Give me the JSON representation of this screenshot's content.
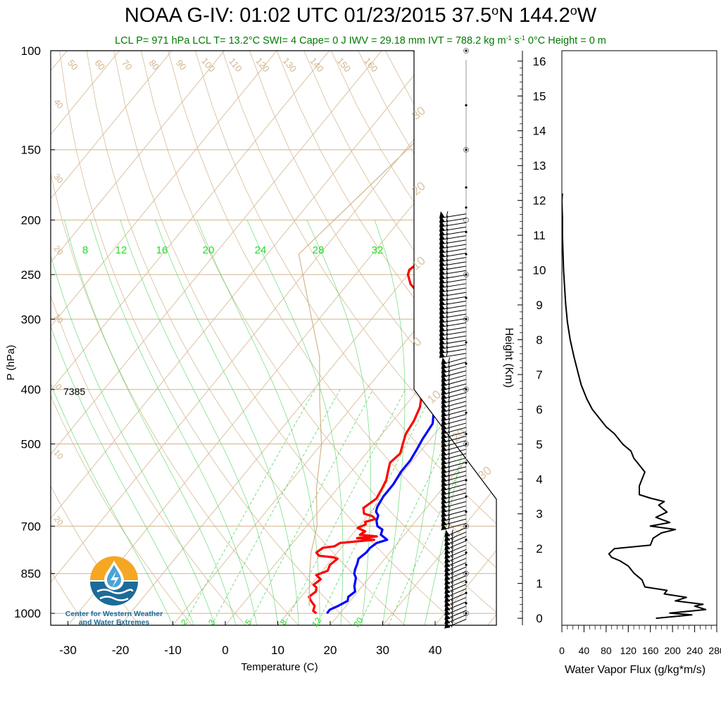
{
  "header": {
    "title_main": "NOAA G-IV: 01:02 UTC 01/23/2015  37.5",
    "title_deg1": "o",
    "title_mid": "N 144.2",
    "title_deg2": "o",
    "title_end": "W",
    "sub_a": "LCL P= 971 hPa  LCL T= 13.2°C  SWI= 4  Cape= 0 J  IWV = 29.18 mm  IVT = 788.2 kg m",
    "sub_exp1": "-1",
    "sub_b": " s",
    "sub_exp2": "-1",
    "sub_c": "  0°C Height = 0 m"
  },
  "logo": {
    "line1": "Center for Western Weather",
    "line2": "and Water Extremes",
    "colors": {
      "sun": "#f5a623",
      "water": "#1d6b99",
      "drop": "#4aa3d6"
    }
  },
  "colors": {
    "temperature": "#ff0000",
    "dewpoint": "#0000ff",
    "dry_adiabat": "#d2b48c",
    "moist_adiabat": "#2ecc40",
    "mixing_ratio": "#2ecc40",
    "isobar": "#d2b48c",
    "flux": "#000000"
  },
  "chart_data": [
    {
      "type": "line",
      "name": "skew-t",
      "xlabel": "Temperature (C)",
      "ylabel": "P (hPa)",
      "x_ticks": [
        "-30",
        "-20",
        "-10",
        "0",
        "10",
        "20",
        "30",
        "40"
      ],
      "p_ticks": [
        "100",
        "150",
        "200",
        "250",
        "300",
        "400",
        "500",
        "700",
        "850",
        "1000"
      ],
      "p_values": [
        100,
        150,
        200,
        250,
        300,
        400,
        500,
        700,
        850,
        1000
      ],
      "annotation": "7385",
      "isotherm_labels": [
        "50",
        "60",
        "70",
        "80",
        "90",
        "100",
        "110",
        "120",
        "130",
        "140",
        "150",
        "160"
      ],
      "left_isotherm_labels": [
        "40",
        "30",
        "20",
        "10",
        "0",
        "10",
        "20"
      ],
      "right_isotherm_labels": [
        "30",
        "20",
        "10",
        "0",
        "10",
        "20",
        "30"
      ],
      "moist_labels": [
        "8",
        "12",
        "16",
        "20",
        "24",
        "28",
        "32"
      ],
      "mixing_labels": [
        "2",
        "3",
        "5",
        "8",
        "12",
        "20"
      ],
      "series": [
        {
          "name": "temperature",
          "points": [
            [
              15.5,
              1000
            ],
            [
              14.5,
              990
            ],
            [
              14.0,
              970
            ],
            [
              12.5,
              950
            ],
            [
              11.5,
              935
            ],
            [
              12.0,
              915
            ],
            [
              11.5,
              900
            ],
            [
              10.5,
              890
            ],
            [
              11.0,
              870
            ],
            [
              9.5,
              855
            ],
            [
              11.0,
              840
            ],
            [
              10.5,
              820
            ],
            [
              11.0,
              800
            ],
            [
              10.0,
              795
            ],
            [
              7.0,
              790
            ],
            [
              6.0,
              780
            ],
            [
              6.5,
              765
            ],
            [
              8.5,
              760
            ],
            [
              9.0,
              750
            ],
            [
              12.0,
              745
            ],
            [
              15.0,
              740
            ],
            [
              11.5,
              735
            ],
            [
              15.0,
              730
            ],
            [
              11.5,
              725
            ],
            [
              12.0,
              715
            ],
            [
              10.0,
              705
            ],
            [
              11.0,
              695
            ],
            [
              10.5,
              688
            ],
            [
              12.0,
              680
            ],
            [
              11.0,
              672
            ],
            [
              9.0,
              665
            ],
            [
              8.0,
              650
            ],
            [
              9.0,
              625
            ],
            [
              8.5,
              600
            ],
            [
              8.0,
              580
            ],
            [
              7.0,
              560
            ],
            [
              6.0,
              540
            ],
            [
              6.5,
              520
            ],
            [
              5.5,
              500
            ],
            [
              4.5,
              480
            ],
            [
              4.0,
              455
            ],
            [
              3.0,
              430
            ],
            [
              1.5,
              410
            ],
            [
              0.0,
              400
            ],
            [
              -2.5,
              370
            ],
            [
              -5.0,
              340
            ],
            [
              -7.5,
              320
            ],
            [
              -10.0,
              300
            ],
            [
              -12.0,
              290
            ],
            [
              -13.0,
              280
            ],
            [
              -15.0,
              270
            ],
            [
              -18.0,
              260
            ],
            [
              -20.0,
              250
            ],
            [
              -20.5,
              245
            ],
            [
              -20.0,
              240
            ],
            [
              -19.0,
              235
            ],
            [
              -17.0,
              230
            ],
            [
              -15.5,
              225
            ],
            [
              -17.0,
              220
            ],
            [
              -19.0,
              215
            ],
            [
              -20.5,
              210
            ],
            [
              -22.0,
              200
            ],
            [
              -23.5,
              190
            ]
          ]
        },
        {
          "name": "dewpoint",
          "points": [
            [
              17.5,
              1000
            ],
            [
              17.5,
              985
            ],
            [
              18.5,
              970
            ],
            [
              19.5,
              950
            ],
            [
              19.0,
              935
            ],
            [
              19.5,
              915
            ],
            [
              18.5,
              895
            ],
            [
              18.0,
              880
            ],
            [
              17.5,
              865
            ],
            [
              16.5,
              850
            ],
            [
              16.0,
              835
            ],
            [
              15.5,
              815
            ],
            [
              15.0,
              800
            ],
            [
              15.5,
              780
            ],
            [
              15.5,
              765
            ],
            [
              16.0,
              750
            ],
            [
              17.5,
              740
            ],
            [
              15.5,
              725
            ],
            [
              15.0,
              710
            ],
            [
              13.5,
              700
            ],
            [
              12.5,
              685
            ],
            [
              12.0,
              670
            ],
            [
              11.0,
              660
            ],
            [
              10.5,
              648
            ],
            [
              10.0,
              620
            ],
            [
              10.0,
              590
            ],
            [
              9.5,
              560
            ],
            [
              9.5,
              535
            ],
            [
              9.0,
              510
            ],
            [
              8.5,
              490
            ],
            [
              8.0,
              460
            ],
            [
              6.5,
              440
            ],
            [
              5.5,
              415
            ],
            [
              4.0,
              395
            ],
            [
              2.5,
              370
            ],
            [
              0.5,
              340
            ],
            [
              -1.5,
              320
            ],
            [
              -3.0,
              305
            ],
            [
              -5.0,
              290
            ],
            [
              -7.5,
              275
            ],
            [
              -9.5,
              262
            ],
            [
              -11.0,
              250
            ],
            [
              -10.5,
              240
            ],
            [
              -8.0,
              232
            ],
            [
              -5.5,
              225
            ],
            [
              -3.5,
              220
            ],
            [
              -3.0,
              215
            ],
            [
              -3.5,
              208
            ],
            [
              -5.0,
              198
            ],
            [
              -5.5,
              190
            ]
          ]
        },
        {
          "name": "parcel",
          "points": [
            [
              13.0,
              971
            ],
            [
              8.0,
              850
            ],
            [
              5.0,
              780
            ],
            [
              2.0,
              700
            ],
            [
              -4.0,
              600
            ],
            [
              -10.0,
              500
            ],
            [
              -17.0,
              420
            ],
            [
              -24.0,
              350
            ],
            [
              -33.0,
              290
            ],
            [
              -44.0,
              230
            ],
            [
              -39.0,
              140
            ],
            [
              -28.0,
              100
            ]
          ]
        }
      ]
    },
    {
      "type": "line",
      "name": "water-vapor-flux",
      "xlabel": "Water Vapor Flux (g/kg*m/s)",
      "ylabel": "Height (Km)",
      "x_ticks": [
        "0",
        "40",
        "80",
        "120",
        "160",
        "200",
        "240",
        "280"
      ],
      "y_ticks": [
        "0",
        "1",
        "2",
        "3",
        "4",
        "5",
        "6",
        "7",
        "8",
        "9",
        "10",
        "11",
        "12",
        "13",
        "14",
        "15",
        "16"
      ],
      "xlim": [
        0,
        280
      ],
      "ylim": [
        -0.2,
        16.3
      ],
      "series": [
        {
          "name": "flux",
          "points": [
            [
              170,
              0.0
            ],
            [
              235,
              0.1
            ],
            [
              195,
              0.15
            ],
            [
              260,
              0.25
            ],
            [
              240,
              0.35
            ],
            [
              255,
              0.4
            ],
            [
              205,
              0.5
            ],
            [
              225,
              0.6
            ],
            [
              185,
              0.7
            ],
            [
              190,
              0.8
            ],
            [
              150,
              0.9
            ],
            [
              145,
              1.1
            ],
            [
              130,
              1.3
            ],
            [
              120,
              1.5
            ],
            [
              105,
              1.65
            ],
            [
              90,
              1.75
            ],
            [
              85,
              1.85
            ],
            [
              95,
              2.0
            ],
            [
              160,
              2.1
            ],
            [
              165,
              2.3
            ],
            [
              180,
              2.45
            ],
            [
              205,
              2.55
            ],
            [
              160,
              2.65
            ],
            [
              195,
              2.75
            ],
            [
              170,
              2.9
            ],
            [
              190,
              3.05
            ],
            [
              175,
              3.25
            ],
            [
              185,
              3.35
            ],
            [
              160,
              3.45
            ],
            [
              140,
              3.55
            ],
            [
              140,
              3.8
            ],
            [
              145,
              4.0
            ],
            [
              150,
              4.2
            ],
            [
              140,
              4.4
            ],
            [
              130,
              4.6
            ],
            [
              125,
              4.8
            ],
            [
              110,
              5.0
            ],
            [
              95,
              5.3
            ],
            [
              80,
              5.5
            ],
            [
              65,
              5.8
            ],
            [
              55,
              6.0
            ],
            [
              45,
              6.3
            ],
            [
              35,
              6.7
            ],
            [
              30,
              7.0
            ],
            [
              22,
              7.5
            ],
            [
              15,
              8.0
            ],
            [
              10,
              8.5
            ],
            [
              7,
              9.0
            ],
            [
              5,
              9.5
            ],
            [
              3,
              10.0
            ],
            [
              2,
              10.5
            ],
            [
              1,
              11.0
            ],
            [
              1,
              11.5
            ],
            [
              0,
              12.0
            ],
            [
              1,
              12.2
            ]
          ]
        }
      ]
    }
  ]
}
